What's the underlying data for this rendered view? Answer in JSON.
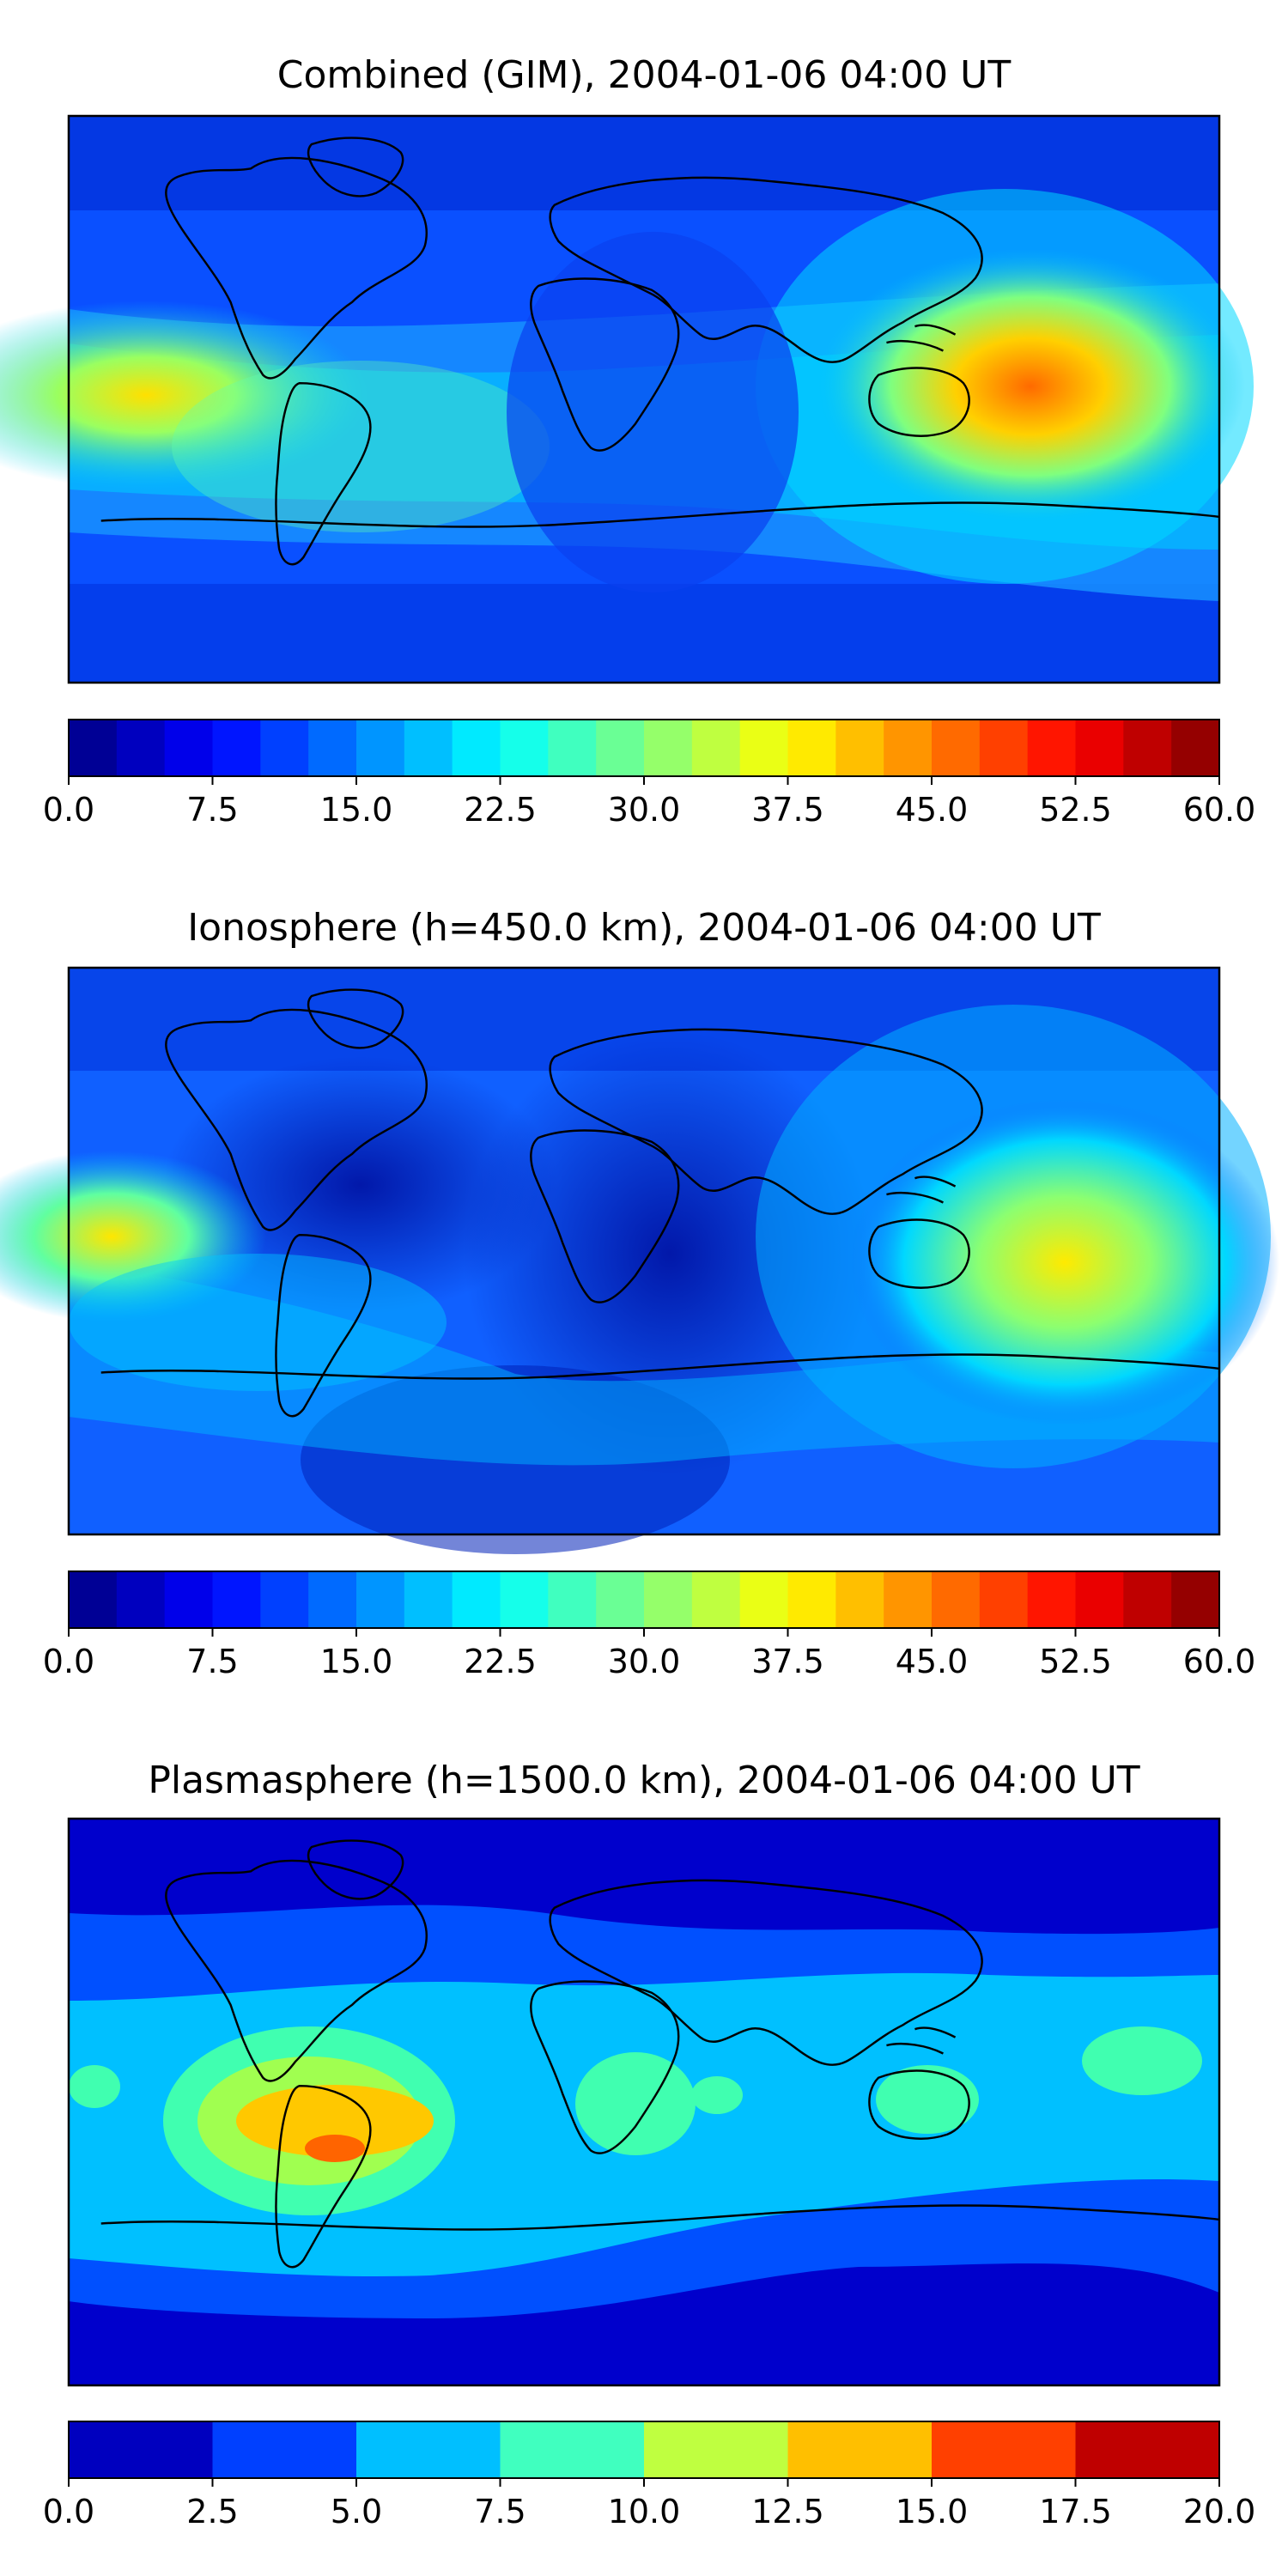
{
  "figure": {
    "panels": [
      {
        "title": "Combined (GIM), 2004-01-06 04:00 UT",
        "colorbar": {
          "ticks": [
            "0.0",
            "7.5",
            "15.0",
            "22.5",
            "30.0",
            "37.5",
            "45.0",
            "52.5",
            "60.0"
          ],
          "vmin": 0,
          "vmax": 60,
          "levels": 24,
          "colormap": "jet"
        }
      },
      {
        "title": "Ionosphere  (h=450.0 km), 2004-01-06 04:00 UT",
        "colorbar": {
          "ticks": [
            "0.0",
            "7.5",
            "15.0",
            "22.5",
            "30.0",
            "37.5",
            "45.0",
            "52.5",
            "60.0"
          ],
          "vmin": 0,
          "vmax": 60,
          "levels": 24,
          "colormap": "jet"
        }
      },
      {
        "title": "Plasmasphere (h=1500.0 km), 2004-01-06 04:00 UT",
        "colorbar": {
          "ticks": [
            "0.0",
            "2.5",
            "5.0",
            "7.5",
            "10.0",
            "12.5",
            "15.0",
            "17.5",
            "20.0"
          ],
          "vmin": 0,
          "vmax": 20,
          "levels": 8,
          "colormap": "jet"
        }
      }
    ]
  }
}
